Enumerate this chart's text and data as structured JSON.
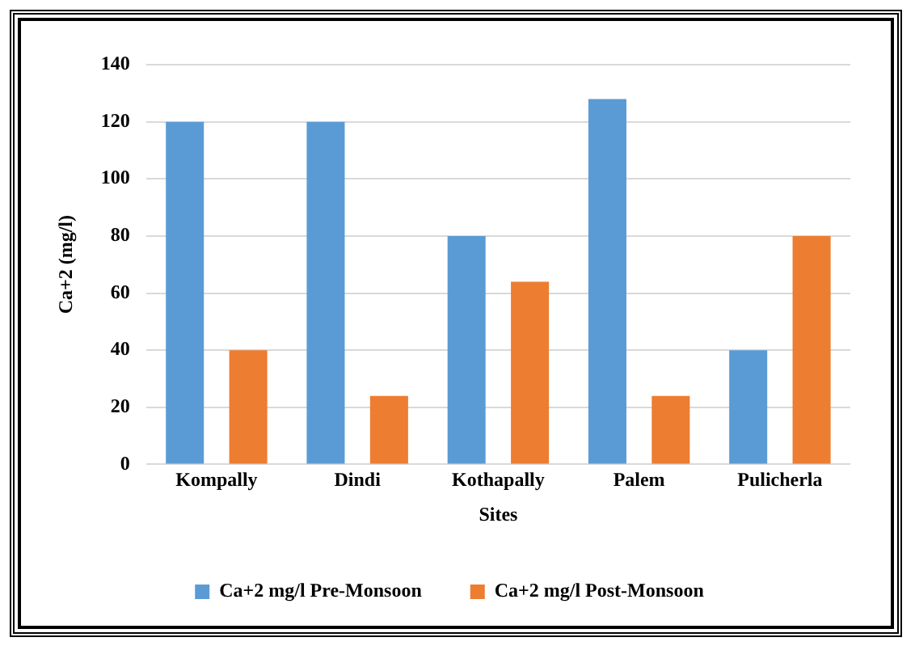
{
  "chart_data": {
    "type": "bar",
    "xlabel": "Sites",
    "ylabel": "Ca+2 (mg/l)",
    "categories": [
      "Kompally",
      "Dindi",
      "Kothapally",
      "Palem",
      "Pulicherla"
    ],
    "series": [
      {
        "name": "Ca+2 mg/l Pre-Monsoon",
        "color": "#5b9bd5",
        "values": [
          120,
          120,
          80,
          128,
          40
        ]
      },
      {
        "name": "Ca+2 mg/l Post-Monsoon",
        "color": "#ed7d31",
        "values": [
          40,
          24,
          64,
          24,
          80
        ]
      }
    ],
    "ylim": [
      0,
      140
    ],
    "yticks": [
      0,
      20,
      40,
      60,
      80,
      100,
      120,
      140
    ],
    "grid": "y",
    "legend": "bottom"
  }
}
